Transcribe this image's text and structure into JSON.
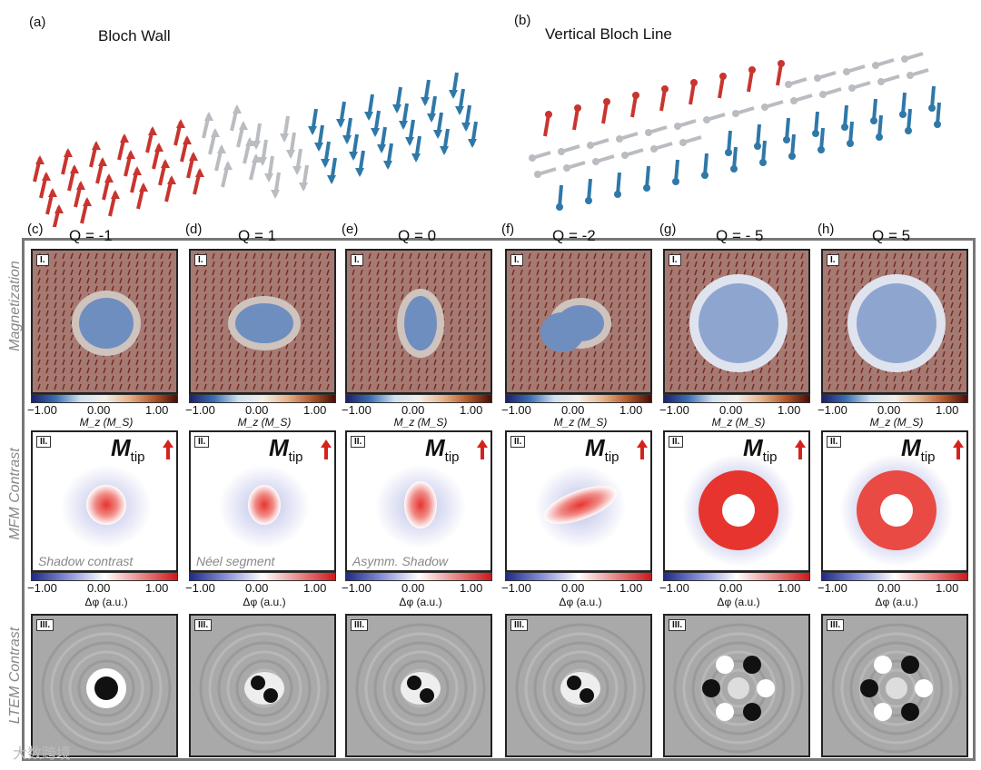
{
  "header": {
    "a_label": "(a)",
    "a_title": "Bloch Wall",
    "b_label": "(b)",
    "b_title": "Vertical Bloch Line"
  },
  "rows": {
    "row1": "Magnetization",
    "row2": "MFM Contrast",
    "row3": "LTEM Contrast"
  },
  "roman": [
    "I.",
    "II.",
    "III."
  ],
  "columns": [
    {
      "label": "(c)",
      "q": "Q = -1"
    },
    {
      "label": "(d)",
      "q": "Q = 1"
    },
    {
      "label": "(e)",
      "q": "Q = 0"
    },
    {
      "label": "(f)",
      "q": "Q = -2"
    },
    {
      "label": "(g)",
      "q": "Q = - 5"
    },
    {
      "label": "(h)",
      "q": "Q = 5"
    }
  ],
  "colorbar": {
    "min": "−1.00",
    "mid": "0.00",
    "max": "1.00"
  },
  "mag_unit": "M_z (M_S)",
  "mfm_unit": "Δφ (a.u.)",
  "mtip": "M",
  "mtip_sub": "tip",
  "annotations": {
    "shadow": "Shadow contrast",
    "neel": "Néel segment",
    "asymm": "Asymm. Shadow"
  },
  "watermark": "大数跨境",
  "colors": {
    "red": "#c8352e",
    "blue": "#2f78a8",
    "gray": "#b9bcc0"
  }
}
